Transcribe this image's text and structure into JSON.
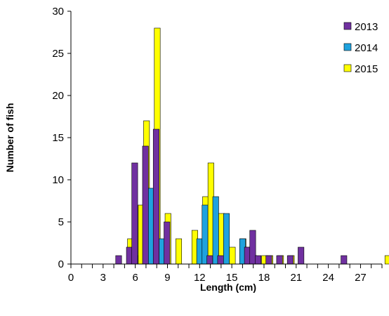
{
  "chart_data": {
    "type": "bar",
    "xlabel": "Length (cm)",
    "ylabel": "Number of fish",
    "xlim": [
      0,
      29
    ],
    "ylim": [
      0,
      30
    ],
    "x_ticks": [
      0,
      3,
      6,
      9,
      12,
      15,
      18,
      21,
      24,
      27
    ],
    "y_ticks": [
      0,
      5,
      10,
      15,
      20,
      25,
      30
    ],
    "grid": false,
    "legend_position": "top-right",
    "x": [
      5,
      6,
      6.5,
      7,
      7.5,
      8,
      8.5,
      9,
      9.5,
      10,
      11,
      12,
      12.5,
      13,
      13.5,
      14,
      14.5,
      15,
      15.5,
      16,
      16.5,
      17,
      17.5,
      18,
      19,
      20,
      21,
      22,
      26,
      29
    ],
    "series": [
      {
        "name": "2013",
        "color": "#7030A0",
        "values": [
          1,
          2,
          12,
          0,
          14,
          0,
          16,
          0,
          5,
          0,
          0,
          0,
          0,
          0,
          1,
          0,
          1,
          0,
          0,
          0,
          0,
          2,
          4,
          1,
          1,
          1,
          1,
          2,
          1,
          0
        ]
      },
      {
        "name": "2014",
        "color": "#1FA2DE",
        "values": [
          0,
          1,
          0,
          5,
          9,
          0,
          3,
          0,
          0,
          0,
          0,
          3,
          7,
          0,
          8,
          0,
          6,
          0,
          0,
          3,
          2,
          0,
          0,
          0,
          0,
          0,
          0,
          0,
          0,
          0
        ]
      },
      {
        "name": "2015",
        "color": "#FFFF00",
        "values": [
          3,
          7,
          17,
          0,
          28,
          0,
          6,
          0,
          3,
          0,
          4,
          8,
          12,
          0,
          6,
          0,
          2,
          0,
          3,
          0,
          1,
          0,
          1,
          1,
          1,
          1,
          0,
          0,
          0,
          1
        ]
      }
    ]
  }
}
